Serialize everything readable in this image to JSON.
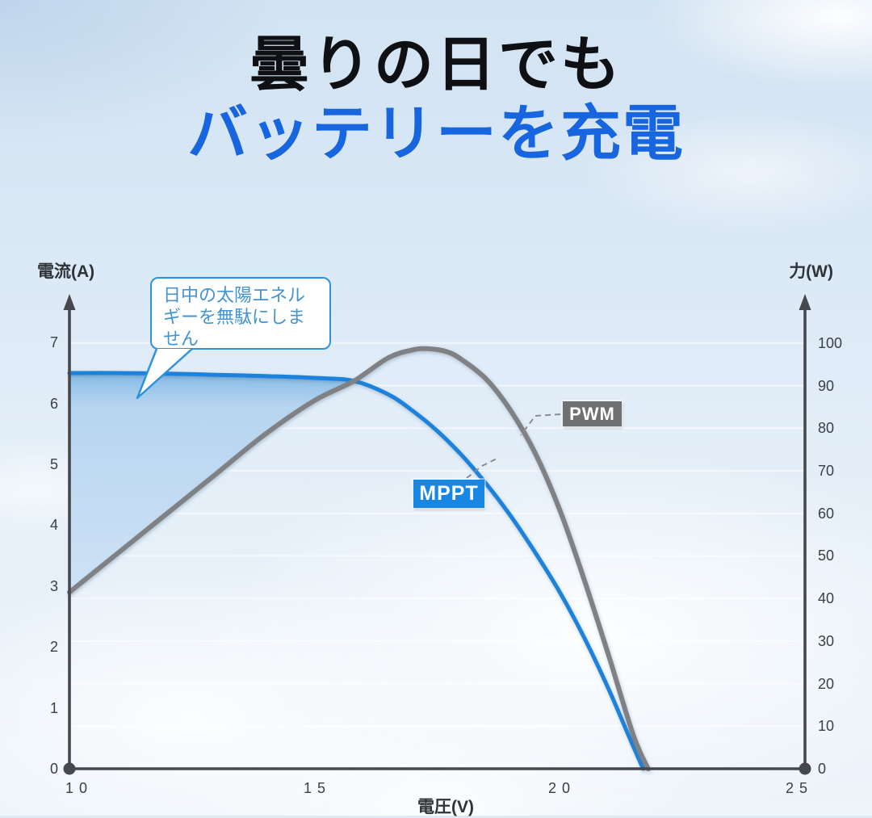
{
  "title": {
    "line1": "曇りの日でも",
    "line2": "バッテリーを充電"
  },
  "callout": {
    "text": "日中の太陽エネルギーを無駄にしません"
  },
  "badges": {
    "pwm": "PWM",
    "mppt": "MPPT"
  },
  "axes": {
    "left_title": "電流(A)",
    "right_title": "力(W)",
    "x_title": "電圧(V)",
    "left_ticks": [
      7,
      6,
      5,
      4,
      3,
      2,
      1,
      0
    ],
    "right_ticks": [
      100,
      90,
      80,
      70,
      60,
      50,
      40,
      30,
      20,
      10,
      0
    ],
    "x_ticks": [
      {
        "value": 10,
        "label": "1 0"
      },
      {
        "value": 15,
        "label": "1 5"
      },
      {
        "value": 20,
        "label": "2 0"
      },
      {
        "value": 25,
        "label": "2 5"
      }
    ]
  },
  "colors": {
    "title_line1": "#0e1013",
    "title_line2": "#1766df",
    "mppt_line": "#1b82dc",
    "pwm_line": "#7f8184",
    "badge_mppt_bg": "#1787e3",
    "badge_pwm_bg": "#6f7072",
    "axis": "#45484c",
    "grid": "#ffffff",
    "fill_top": "#7fb7e5",
    "fill_mid": "#b5d4ef",
    "fill_bottom": "#cce1f5",
    "callout_border": "#2e93dc",
    "callout_text": "#4493d2",
    "connector": "#8a8d90"
  },
  "chart_data": {
    "type": "line",
    "xlabel": "電圧(V)",
    "ylabel_left": "電流(A)",
    "ylabel_right": "力(W)",
    "x_range": [
      10,
      25
    ],
    "y_left_range": [
      0,
      7.72
    ],
    "y_right_range": [
      0,
      110.4
    ],
    "grid": true,
    "series": [
      {
        "name": "MPPT",
        "color": "#1b82dc",
        "x": [
          10,
          11,
          12,
          13,
          14,
          15,
          15.8,
          16.5,
          17,
          17.5,
          18,
          18.5,
          19,
          19.5,
          20,
          20.5,
          21,
          21.4,
          21.7
        ],
        "y": [
          6.5,
          6.5,
          6.49,
          6.47,
          6.45,
          6.42,
          6.37,
          6.15,
          5.88,
          5.55,
          5.15,
          4.68,
          4.15,
          3.55,
          2.9,
          2.15,
          1.3,
          0.55,
          0
        ]
      },
      {
        "name": "PWM",
        "color": "#7f8184",
        "x": [
          10,
          11,
          12,
          13,
          14,
          15,
          15.8,
          16.5,
          17,
          17.3,
          17.7,
          18,
          18.5,
          19,
          19.5,
          20,
          20.5,
          21,
          21.5,
          21.8
        ],
        "y": [
          2.9,
          3.55,
          4.2,
          4.85,
          5.5,
          6.05,
          6.37,
          6.75,
          6.88,
          6.9,
          6.85,
          6.72,
          6.4,
          5.88,
          5.18,
          4.25,
          3.1,
          1.85,
          0.55,
          0
        ]
      }
    ],
    "fill_between": {
      "upper": "MPPT",
      "lower": "PWM",
      "from_x": 10,
      "to_x": 15.8
    },
    "annotations": [
      {
        "text": "PWM",
        "type": "badge",
        "target": "PWM"
      },
      {
        "text": "MPPT",
        "type": "badge",
        "target": "MPPT"
      },
      {
        "text": "日中の太陽エネルギーを無駄にしません",
        "type": "callout",
        "target": "MPPT-fill"
      }
    ]
  }
}
